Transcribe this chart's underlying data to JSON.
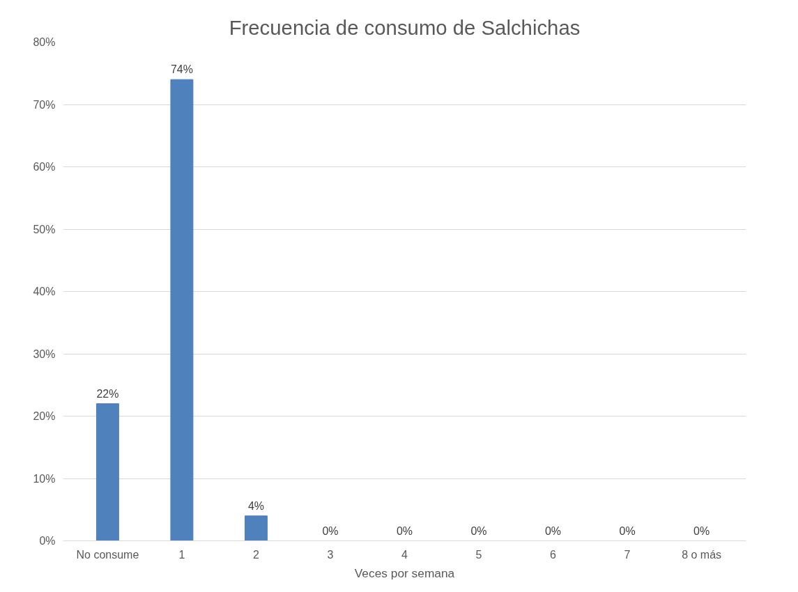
{
  "chart_data": {
    "type": "bar",
    "title": "Frecuencia de consumo de Salchichas",
    "xlabel": "Veces por semana",
    "categories": [
      "No consume",
      "1",
      "2",
      "3",
      "4",
      "5",
      "6",
      "7",
      "8 o más"
    ],
    "values": [
      22,
      74,
      4,
      0,
      0,
      0,
      0,
      0,
      0
    ],
    "value_labels": [
      "22%",
      "74%",
      "4%",
      "0%",
      "0%",
      "0%",
      "0%",
      "0%",
      "0%"
    ],
    "color": "#4f81bd",
    "ylim": [
      0,
      80
    ],
    "yticks": [
      {
        "value": 0,
        "label": "0%"
      },
      {
        "value": 10,
        "label": "10%"
      },
      {
        "value": 20,
        "label": "20%"
      },
      {
        "value": 30,
        "label": "30%"
      },
      {
        "value": 40,
        "label": "40%"
      },
      {
        "value": 50,
        "label": "50%"
      },
      {
        "value": 60,
        "label": "60%"
      },
      {
        "value": 70,
        "label": "70%"
      },
      {
        "value": 80,
        "label": "80%"
      }
    ],
    "grid": "y"
  }
}
